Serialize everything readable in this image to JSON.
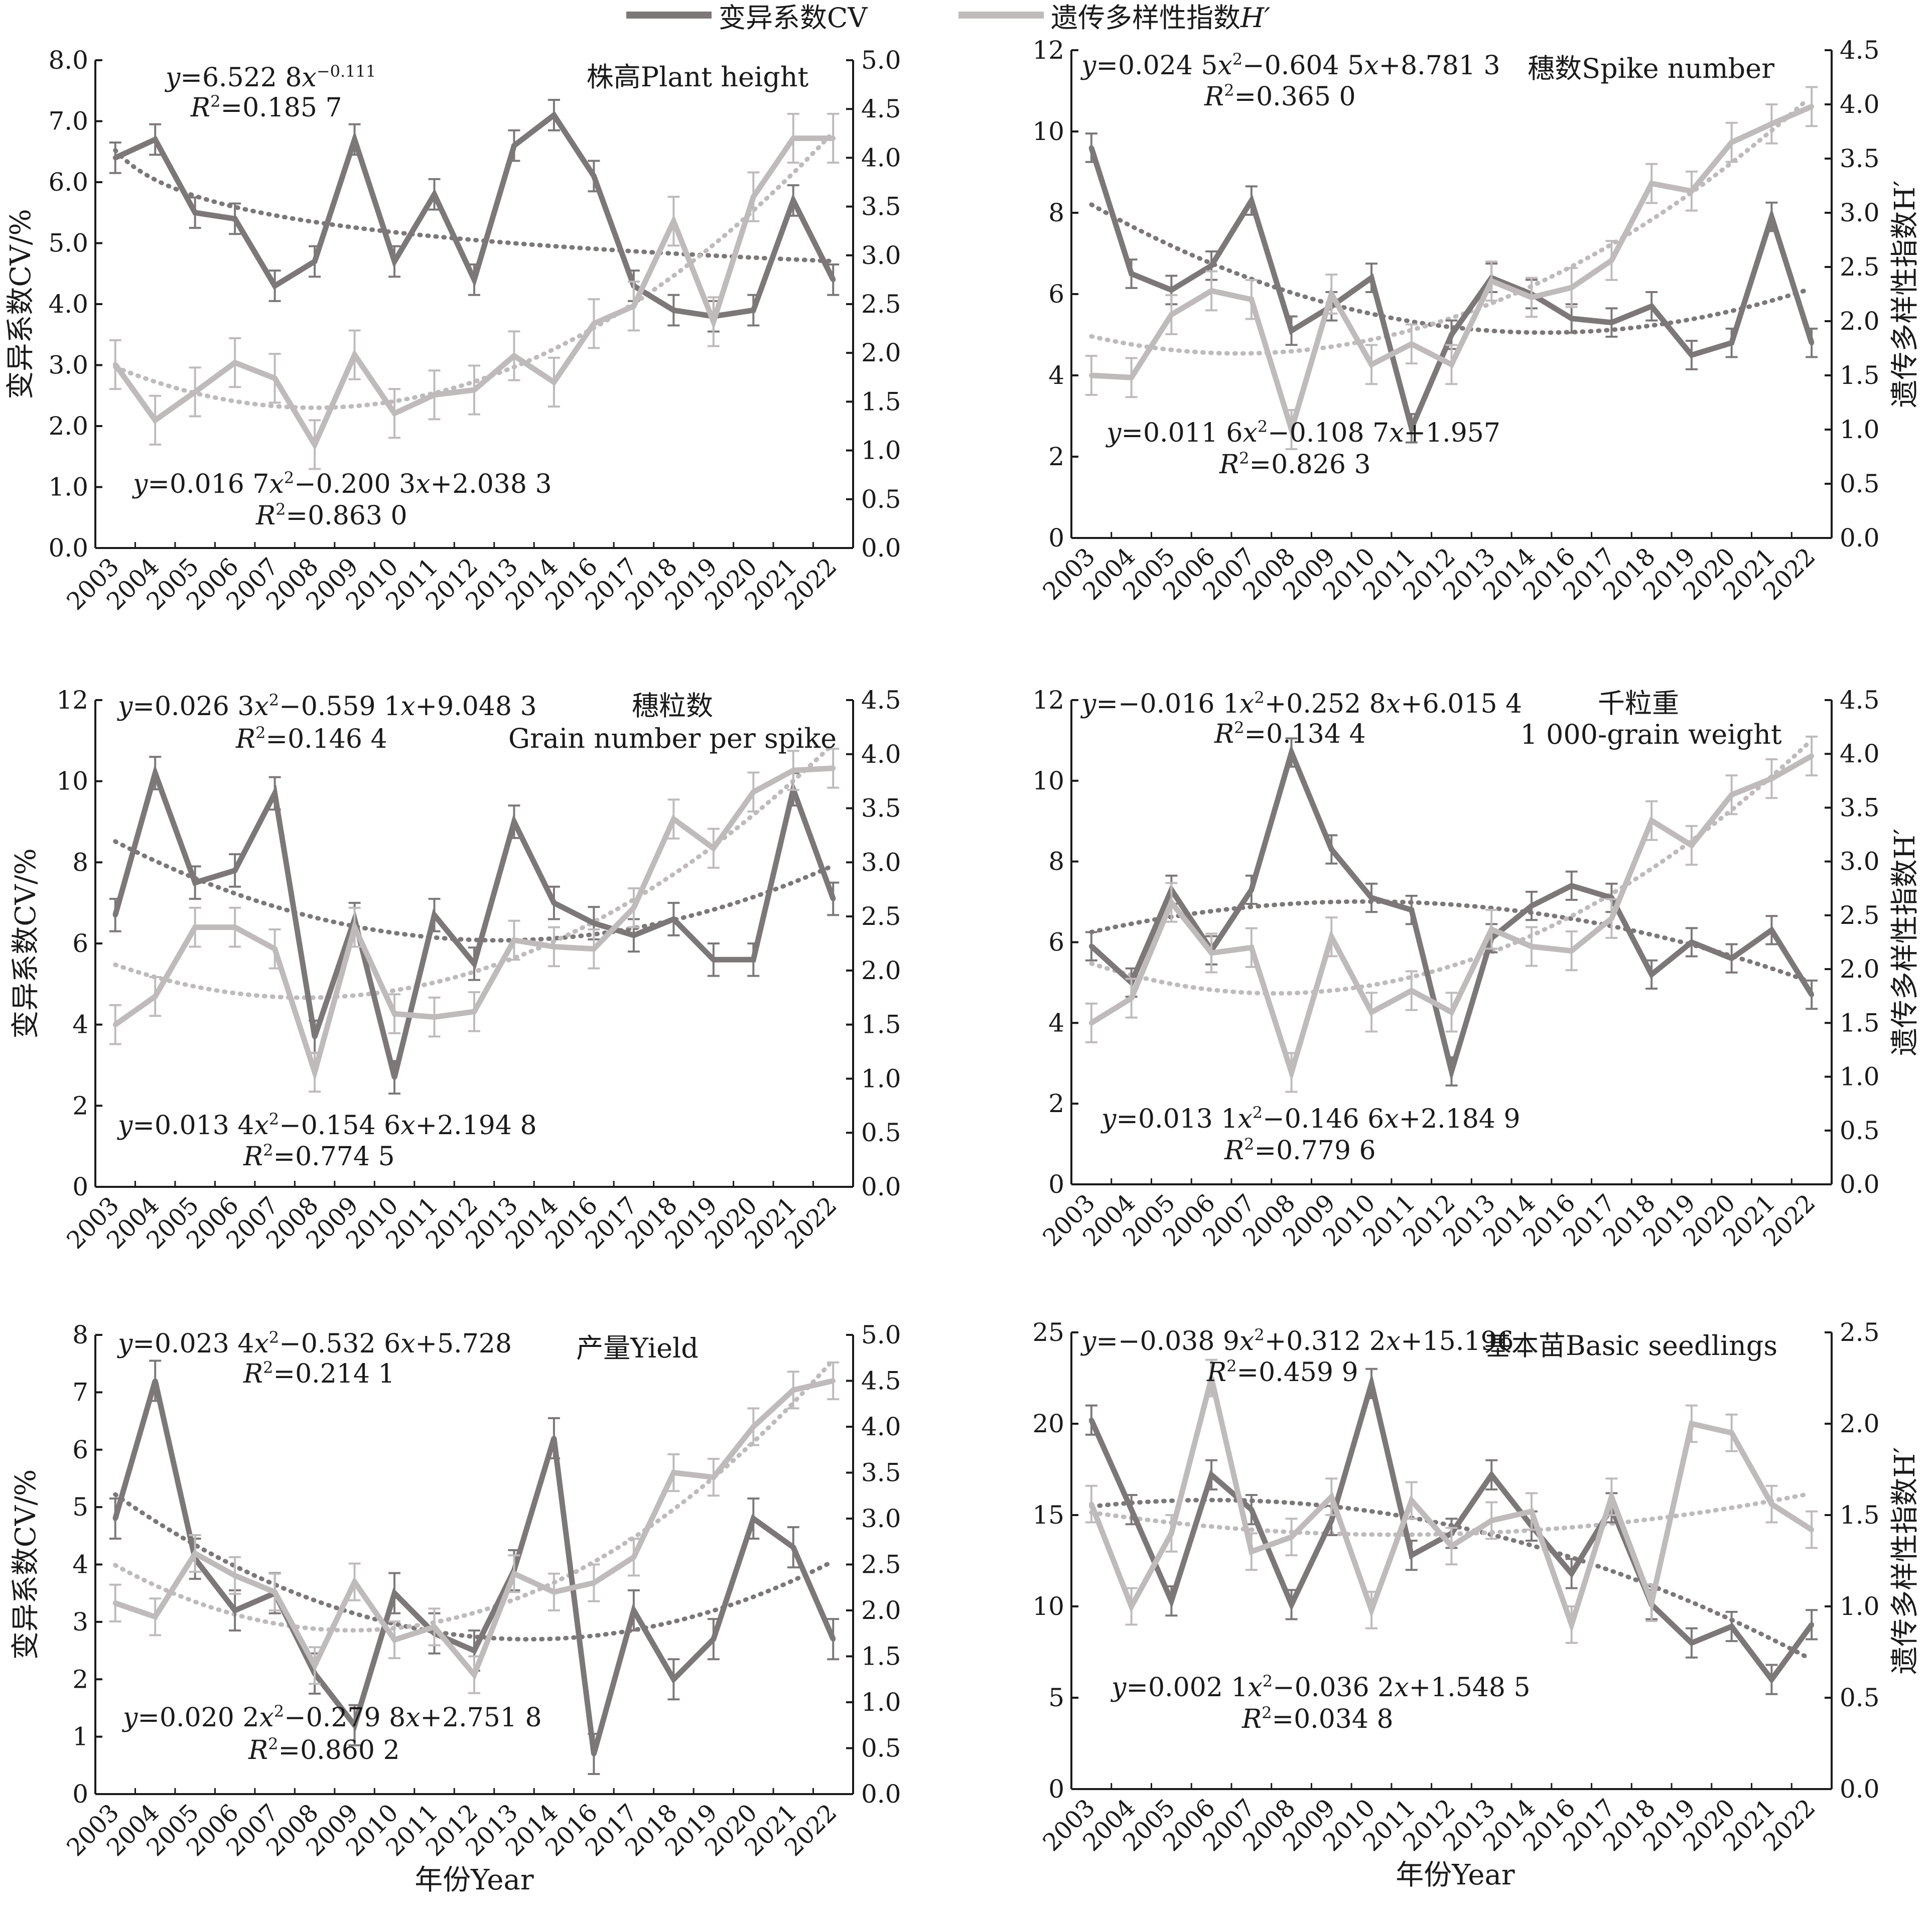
{
  "legend": {
    "cv_label": "变异系数CV",
    "h_label": "遗传多样性指数",
    "h_symbol": "H′"
  },
  "colors": {
    "cv": "#7d7878",
    "h": "#bfbbbb",
    "axis": "#1a1a1a",
    "text": "#1a1a1a"
  },
  "x_axis_title": "年份Year",
  "left_axis_title": "变异系数CV/%",
  "right_axis_title": "遗传多样性指数H′",
  "chart_data": [
    {
      "type": "line",
      "title": "株高Plant height",
      "categories": [
        "2003",
        "2004",
        "2005",
        "2006",
        "2007",
        "2008",
        "2009",
        "2010",
        "2011",
        "2012",
        "2013",
        "2014",
        "2016",
        "2017",
        "2018",
        "2019",
        "2020",
        "2021",
        "2022"
      ],
      "y_left": {
        "label": "变异系数CV/%",
        "range": [
          0,
          8
        ],
        "ticks": [
          "0.0",
          "1.0",
          "2.0",
          "3.0",
          "4.0",
          "5.0",
          "6.0",
          "7.0",
          "8.0"
        ]
      },
      "y_right": {
        "label": "",
        "range": [
          0,
          5
        ],
        "ticks": [
          "0.0",
          "0.5",
          "1.0",
          "1.5",
          "2.0",
          "2.5",
          "3.0",
          "3.5",
          "4.0",
          "4.5",
          "5.0"
        ]
      },
      "series": [
        {
          "name": "变异系数CV",
          "axis": "left",
          "values": [
            6.4,
            6.7,
            5.5,
            5.4,
            4.3,
            4.7,
            6.7,
            4.7,
            5.8,
            4.4,
            6.6,
            7.1,
            6.1,
            4.3,
            3.9,
            3.8,
            3.9,
            5.7,
            4.4
          ],
          "error": [
            0.25,
            0.25,
            0.25,
            0.25,
            0.25,
            0.25,
            0.25,
            0.25,
            0.25,
            0.25,
            0.25,
            0.25,
            0.25,
            0.25,
            0.25,
            0.25,
            0.25,
            0.25,
            0.25
          ]
        },
        {
          "name": "遗传多样性指数H′",
          "axis": "right",
          "values": [
            1.88,
            1.31,
            1.6,
            1.9,
            1.74,
            1.06,
            1.98,
            1.38,
            1.57,
            1.62,
            1.97,
            1.7,
            2.3,
            2.48,
            3.35,
            2.32,
            3.6,
            4.2,
            4.2
          ],
          "error": [
            0.25,
            0.25,
            0.25,
            0.25,
            0.25,
            0.25,
            0.25,
            0.25,
            0.25,
            0.25,
            0.25,
            0.25,
            0.25,
            0.25,
            0.25,
            0.25,
            0.25,
            0.25,
            0.25
          ]
        }
      ],
      "trend_cv": {
        "equation": "y=6.522 8x−0.111",
        "r2": "R²=0.185 7",
        "form": "power",
        "coef": [
          6.5228,
          -0.111
        ]
      },
      "trend_h": {
        "equation": "y=0.016 7x²−0.200 3x+2.038 3",
        "r2": "R²=0.863 0",
        "form": "poly",
        "coef": [
          0.0167,
          -0.2003,
          2.0383
        ]
      }
    },
    {
      "type": "line",
      "title": "穗数Spike number",
      "categories": [
        "2003",
        "2004",
        "2005",
        "2006",
        "2007",
        "2008",
        "2009",
        "2010",
        "2011",
        "2012",
        "2013",
        "2014",
        "2016",
        "2017",
        "2018",
        "2019",
        "2020",
        "2021",
        "2022"
      ],
      "y_left": {
        "label": "",
        "range": [
          0,
          12
        ],
        "ticks": [
          "0",
          "2",
          "4",
          "6",
          "8",
          "10",
          "12"
        ]
      },
      "y_right": {
        "label": "遗传多样性指数H′",
        "range": [
          0,
          4.5
        ],
        "ticks": [
          "0.0",
          "0.5",
          "1.0",
          "1.5",
          "2.0",
          "2.5",
          "3.0",
          "3.5",
          "4.0",
          "4.5"
        ]
      },
      "series": [
        {
          "name": "变异系数CV",
          "axis": "left",
          "values": [
            9.6,
            6.5,
            6.1,
            6.7,
            8.3,
            5.1,
            5.7,
            6.4,
            2.7,
            5.0,
            6.4,
            6.0,
            5.4,
            5.3,
            5.7,
            4.5,
            4.8,
            7.9,
            4.8
          ],
          "error": [
            0.35,
            0.35,
            0.35,
            0.35,
            0.35,
            0.35,
            0.35,
            0.35,
            0.35,
            0.35,
            0.35,
            0.35,
            0.35,
            0.35,
            0.35,
            0.35,
            0.35,
            0.35,
            0.35
          ]
        },
        {
          "name": "遗传多样性指数H′",
          "axis": "right",
          "values": [
            1.5,
            1.48,
            2.06,
            2.28,
            2.2,
            1.0,
            2.25,
            1.6,
            1.79,
            1.6,
            2.37,
            2.22,
            2.31,
            2.56,
            3.27,
            3.2,
            3.65,
            3.82,
            3.98
          ],
          "error": [
            0.18,
            0.18,
            0.18,
            0.18,
            0.18,
            0.18,
            0.18,
            0.18,
            0.18,
            0.18,
            0.18,
            0.18,
            0.18,
            0.18,
            0.18,
            0.18,
            0.18,
            0.18,
            0.18
          ]
        }
      ],
      "trend_cv": {
        "equation": "y=0.024 5x²−0.604 5x+8.781 3",
        "r2": "R²=0.365 0",
        "form": "poly",
        "coef": [
          0.0245,
          -0.6045,
          8.7813
        ]
      },
      "trend_h": {
        "equation": "y=0.011 6x²−0.108 7x+1.957",
        "r2": "R²=0.826 3",
        "form": "poly",
        "coef": [
          0.0116,
          -0.1087,
          1.957
        ]
      }
    },
    {
      "type": "line",
      "title": "穗粒数",
      "subtitle": "Grain number per spike",
      "categories": [
        "2003",
        "2004",
        "2005",
        "2006",
        "2007",
        "2008",
        "2009",
        "2010",
        "2011",
        "2012",
        "2013",
        "2014",
        "2016",
        "2017",
        "2018",
        "2019",
        "2020",
        "2021",
        "2022"
      ],
      "y_left": {
        "label": "变异系数CV/%",
        "range": [
          0,
          12
        ],
        "ticks": [
          "0",
          "2",
          "4",
          "6",
          "8",
          "10",
          "12"
        ]
      },
      "y_right": {
        "label": "",
        "range": [
          0,
          4.5
        ],
        "ticks": [
          "0.0",
          "0.5",
          "1.0",
          "1.5",
          "2.0",
          "2.5",
          "3.0",
          "3.5",
          "4.0",
          "4.5"
        ]
      },
      "series": [
        {
          "name": "变异系数CV",
          "axis": "left",
          "values": [
            6.7,
            10.2,
            7.5,
            7.8,
            9.7,
            3.7,
            6.6,
            2.7,
            6.7,
            5.5,
            9.0,
            7.0,
            6.5,
            6.2,
            6.6,
            5.6,
            5.6,
            9.8,
            7.1
          ],
          "error": [
            0.4,
            0.4,
            0.4,
            0.4,
            0.4,
            0.4,
            0.4,
            0.4,
            0.4,
            0.4,
            0.4,
            0.4,
            0.4,
            0.4,
            0.4,
            0.4,
            0.4,
            0.4,
            0.4
          ]
        },
        {
          "name": "遗传多样性指数H′",
          "axis": "right",
          "values": [
            1.5,
            1.76,
            2.4,
            2.4,
            2.2,
            1.06,
            2.4,
            1.6,
            1.57,
            1.62,
            2.28,
            2.22,
            2.2,
            2.58,
            3.4,
            3.13,
            3.65,
            3.85,
            3.87
          ],
          "error": [
            0.18,
            0.18,
            0.18,
            0.18,
            0.18,
            0.18,
            0.18,
            0.18,
            0.18,
            0.18,
            0.18,
            0.18,
            0.18,
            0.18,
            0.18,
            0.18,
            0.18,
            0.18,
            0.18
          ]
        }
      ],
      "trend_cv": {
        "equation": "y=0.026 3x²−0.559 1x+9.048 3",
        "r2": "R²=0.146 4",
        "form": "poly",
        "coef": [
          0.0263,
          -0.5591,
          9.0483
        ]
      },
      "trend_h": {
        "equation": "y=0.013 4x²−0.154 6x+2.194 8",
        "r2": "R²=0.774 5",
        "form": "poly",
        "coef": [
          0.0134,
          -0.1546,
          2.1948
        ]
      }
    },
    {
      "type": "line",
      "title": "千粒重",
      "subtitle": "1 000-grain weight",
      "categories": [
        "2003",
        "2004",
        "2005",
        "2006",
        "2007",
        "2008",
        "2009",
        "2010",
        "2011",
        "2012",
        "2013",
        "2014",
        "2016",
        "2017",
        "2018",
        "2019",
        "2020",
        "2021",
        "2022"
      ],
      "y_left": {
        "label": "",
        "range": [
          0,
          12
        ],
        "ticks": [
          "0",
          "2",
          "4",
          "6",
          "8",
          "10",
          "12"
        ]
      },
      "y_right": {
        "label": "遗传多样性指数H′",
        "range": [
          0,
          4.5
        ],
        "ticks": [
          "0.0",
          "0.5",
          "1.0",
          "1.5",
          "2.0",
          "2.5",
          "3.0",
          "3.5",
          "4.0",
          "4.5"
        ]
      },
      "series": [
        {
          "name": "变异系数CV",
          "axis": "left",
          "values": [
            5.9,
            5.0,
            7.3,
            5.8,
            7.3,
            10.7,
            8.3,
            7.1,
            6.8,
            2.8,
            6.1,
            6.9,
            7.4,
            7.1,
            5.2,
            6.0,
            5.6,
            6.3,
            4.7
          ],
          "error": [
            0.35,
            0.35,
            0.35,
            0.35,
            0.35,
            0.35,
            0.35,
            0.35,
            0.35,
            0.35,
            0.35,
            0.35,
            0.35,
            0.35,
            0.35,
            0.35,
            0.35,
            0.35,
            0.35
          ]
        },
        {
          "name": "遗传多样性指数H′",
          "axis": "right",
          "values": [
            1.5,
            1.73,
            2.62,
            2.15,
            2.2,
            1.04,
            2.3,
            1.6,
            1.8,
            1.6,
            2.37,
            2.21,
            2.17,
            2.47,
            3.38,
            3.15,
            3.62,
            3.77,
            3.98
          ],
          "error": [
            0.18,
            0.18,
            0.18,
            0.18,
            0.18,
            0.18,
            0.18,
            0.18,
            0.18,
            0.18,
            0.18,
            0.18,
            0.18,
            0.18,
            0.18,
            0.18,
            0.18,
            0.18,
            0.18
          ]
        }
      ],
      "trend_cv": {
        "equation": "y=−0.016 1x²+0.252 8x+6.015 4",
        "r2": "R²=0.134 4",
        "form": "poly",
        "coef": [
          -0.0161,
          0.2528,
          6.0154
        ]
      },
      "trend_h": {
        "equation": "y=0.013 1x²−0.146 6x+2.184 9",
        "r2": "R²=0.779 6",
        "form": "poly",
        "coef": [
          0.0131,
          -0.1466,
          2.1849
        ]
      }
    },
    {
      "type": "line",
      "title": "产量Yield",
      "categories": [
        "2003",
        "2004",
        "2005",
        "2006",
        "2007",
        "2008",
        "2009",
        "2010",
        "2011",
        "2012",
        "2013",
        "2014",
        "2016",
        "2017",
        "2018",
        "2019",
        "2020",
        "2021",
        "2022"
      ],
      "y_left": {
        "label": "变异系数CV/%",
        "range": [
          0,
          8
        ],
        "ticks": [
          "0",
          "1",
          "2",
          "3",
          "4",
          "5",
          "6",
          "7",
          "8"
        ]
      },
      "y_right": {
        "label": "",
        "range": [
          0,
          5
        ],
        "ticks": [
          "0.0",
          "0.5",
          "1.0",
          "1.5",
          "2.0",
          "2.5",
          "3.0",
          "3.5",
          "4.0",
          "4.5",
          "5.0"
        ]
      },
      "series": [
        {
          "name": "变异系数CV",
          "axis": "left",
          "values": [
            4.8,
            7.2,
            4.1,
            3.2,
            3.5,
            2.1,
            1.2,
            3.5,
            2.8,
            2.5,
            3.9,
            6.2,
            0.7,
            3.2,
            2.0,
            2.7,
            4.8,
            4.3,
            2.7
          ],
          "error": [
            0.35,
            0.35,
            0.35,
            0.35,
            0.35,
            0.35,
            0.35,
            0.35,
            0.35,
            0.35,
            0.35,
            0.35,
            0.35,
            0.35,
            0.35,
            0.35,
            0.35,
            0.35,
            0.35
          ]
        },
        {
          "name": "遗传多样性指数H′",
          "axis": "right",
          "values": [
            2.08,
            1.93,
            2.62,
            2.38,
            2.2,
            1.4,
            2.31,
            1.68,
            1.82,
            1.3,
            2.4,
            2.2,
            2.3,
            2.58,
            3.5,
            3.45,
            4.0,
            4.4,
            4.5
          ],
          "error": [
            0.2,
            0.2,
            0.2,
            0.2,
            0.2,
            0.2,
            0.2,
            0.2,
            0.2,
            0.2,
            0.2,
            0.2,
            0.2,
            0.2,
            0.2,
            0.2,
            0.2,
            0.2,
            0.2
          ]
        }
      ],
      "trend_cv": {
        "equation": "y=0.023 4x²−0.532 6x+5.728",
        "r2": "R²=0.214 1",
        "form": "poly",
        "coef": [
          0.0234,
          -0.5326,
          5.728
        ]
      },
      "trend_h": {
        "equation": "y=0.020 2x²−0.279 8x+2.751 8",
        "r2": "R²=0.860 2",
        "form": "poly",
        "coef": [
          0.0202,
          -0.2798,
          2.7518
        ]
      }
    },
    {
      "type": "line",
      "title": "基本苗Basic seedlings",
      "categories": [
        "2003",
        "2004",
        "2005",
        "2006",
        "2007",
        "2008",
        "2009",
        "2010",
        "2011",
        "2012",
        "2013",
        "2014",
        "2016",
        "2017",
        "2018",
        "2019",
        "2020",
        "2021",
        "2022"
      ],
      "y_left": {
        "label": "",
        "range": [
          0,
          25
        ],
        "ticks": [
          "0",
          "5",
          "10",
          "15",
          "20",
          "25"
        ]
      },
      "y_right": {
        "label": "遗传多样性指数H′",
        "range": [
          0,
          2.5
        ],
        "ticks": [
          "0.0",
          "0.5",
          "1.0",
          "1.5",
          "2.0",
          "2.5"
        ]
      },
      "series": [
        {
          "name": "变异系数CV",
          "axis": "left",
          "values": [
            20.2,
            15.3,
            10.3,
            17.2,
            15.3,
            10.1,
            14.7,
            22.2,
            12.8,
            14.0,
            17.2,
            14.4,
            11.8,
            15.4,
            10.1,
            8.0,
            8.9,
            6.0,
            9.0
          ],
          "error": [
            0.8,
            0.8,
            0.8,
            0.8,
            0.8,
            0.8,
            0.8,
            0.8,
            0.8,
            0.8,
            0.8,
            0.8,
            0.8,
            0.8,
            0.8,
            0.8,
            0.8,
            0.8,
            0.8
          ]
        },
        {
          "name": "遗传多样性指数H′",
          "axis": "right",
          "values": [
            1.56,
            1.0,
            1.4,
            2.25,
            1.3,
            1.38,
            1.6,
            0.98,
            1.58,
            1.33,
            1.47,
            1.52,
            0.9,
            1.6,
            1.02,
            2.0,
            1.95,
            1.56,
            1.42
          ],
          "error": [
            0.1,
            0.1,
            0.1,
            0.1,
            0.1,
            0.1,
            0.1,
            0.1,
            0.1,
            0.1,
            0.1,
            0.1,
            0.1,
            0.1,
            0.1,
            0.1,
            0.1,
            0.1,
            0.1
          ]
        }
      ],
      "trend_cv": {
        "equation": "y=−0.038 9x²+0.312 2x+15.196",
        "r2": "R²=0.459 9",
        "form": "poly",
        "coef": [
          -0.0389,
          0.3122,
          15.196
        ]
      },
      "trend_h": {
        "equation": "y=0.002 1x²−0.036 2x+1.548 5",
        "r2": "R²=0.034 8",
        "form": "poly",
        "coef": [
          0.0021,
          -0.0362,
          1.5485
        ]
      }
    }
  ]
}
